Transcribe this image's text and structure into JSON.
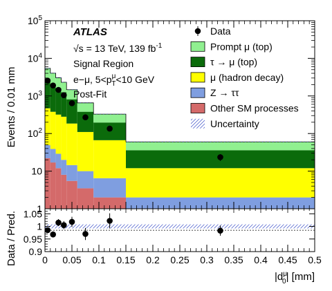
{
  "chart_data": {
    "type": "bar",
    "stacked": true,
    "x_bins": [
      0,
      0.01,
      0.02,
      0.03,
      0.04,
      0.06,
      0.09,
      0.15,
      0.5
    ],
    "x_axis": {
      "xlim": [
        0,
        0.5
      ],
      "ticks": [
        0,
        0.05,
        0.1,
        0.15,
        0.2,
        0.25,
        0.3,
        0.35,
        0.4,
        0.45,
        0.5
      ],
      "tick_labels": [
        "0",
        "0.05",
        "0.1",
        "0.15",
        "0.2",
        "0.25",
        "0.3",
        "0.35",
        "0.4",
        "0.45",
        "0.5"
      ],
      "label": "|d",
      "label_sup": "μ",
      "label_sub": "0",
      "label_tail": "| [mm]"
    },
    "y_axis": {
      "scale": "log",
      "ylim": [
        1,
        100000
      ],
      "ticks": [
        1,
        10,
        100,
        1000,
        10000,
        100000
      ],
      "label": "Events / 0.01 mm"
    },
    "ratio_axis": {
      "ylim": [
        0.9,
        1.07
      ],
      "ticks": [
        0.9,
        0.95,
        1,
        1.05
      ],
      "tick_labels": [
        "0.9",
        "0.95",
        "1",
        "1.05"
      ],
      "label": "Data / Pred."
    },
    "series": [
      {
        "name": "Other SM processes",
        "color": "#d46a6a",
        "values": [
          22,
          17,
          12,
          8,
          5.5,
          3.5,
          2.0,
          1.0
        ]
      },
      {
        "name": "Z → ττ",
        "color": "#7f9ee0",
        "values": [
          27,
          22,
          17,
          12,
          9,
          6.5,
          4.5,
          1.0
        ]
      },
      {
        "name": "μ (hadron decay)",
        "color": "#ffff00",
        "values": [
          420,
          340,
          290,
          260,
          170,
          100,
          60,
          10
        ]
      },
      {
        "name": "τ → μ (top)",
        "color": "#0b6b0b",
        "values": [
          2300,
          1700,
          1300,
          980,
          630,
          270,
          130,
          24
        ]
      },
      {
        "name": "Prompt μ (top)",
        "color": "#90f090",
        "values": [
          2650,
          1950,
          1430,
          1050,
          650,
          275,
          132,
          24
        ]
      }
    ],
    "data": {
      "name": "Data",
      "x": [
        0.005,
        0.015,
        0.025,
        0.035,
        0.05,
        0.075,
        0.12,
        0.325
      ],
      "y": [
        2550,
        1900,
        1450,
        1050,
        640,
        270,
        135,
        23.5
      ],
      "ratio": [
        0.985,
        0.968,
        1.015,
        1.005,
        1.018,
        0.97,
        1.022,
        0.983
      ],
      "ratio_err": [
        0.01,
        0.012,
        0.014,
        0.016,
        0.02,
        0.024,
        0.03,
        0.02
      ]
    },
    "legend": {
      "placement": "top-right",
      "entries": [
        {
          "label": "Data",
          "style": "marker"
        },
        {
          "label": "Prompt μ (top)",
          "style": "box",
          "color": "#90f090"
        },
        {
          "label": "τ → μ (top)",
          "style": "box",
          "color": "#0b6b0b"
        },
        {
          "label": "μ (hadron decay)",
          "style": "box",
          "color": "#ffff00"
        },
        {
          "label": "Z → ττ",
          "style": "box",
          "color": "#7f9ee0"
        },
        {
          "label": "Other SM processes",
          "style": "box",
          "color": "#d46a6a"
        },
        {
          "label": "Uncertainty",
          "style": "hatch",
          "color": "#3a4fc8"
        }
      ]
    },
    "annotations": {
      "experiment": "ATLAS",
      "energy_prefix": "√s = 13 TeV, 139 fb",
      "energy_sup": "-1",
      "region": "Signal Region",
      "selection_prefix": "e−μ, 5<p",
      "selection_sup": "μ",
      "selection_sub": "T",
      "selection_tail": "<10 GeV",
      "fit": "Post-Fit"
    },
    "grid": false
  }
}
